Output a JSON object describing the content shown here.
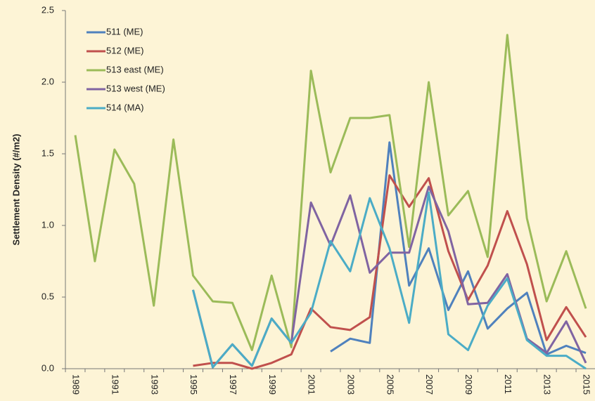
{
  "chart_data": {
    "type": "line",
    "y_label": "Settlement Density (#/m2)",
    "categories": [
      "1989",
      null,
      "1991",
      null,
      "1993",
      null,
      "1995",
      null,
      "1997",
      null,
      "1999",
      null,
      "2001",
      null,
      "2003",
      null,
      "2005",
      null,
      "2007",
      null,
      "2009",
      null,
      "2011",
      null,
      "2013",
      null,
      "2015"
    ],
    "ylim": [
      0,
      2.5
    ],
    "yticks": [
      {
        "value": 0,
        "label": "0.0"
      },
      0.5,
      {
        "value": 1,
        "label": "1.0"
      },
      1.5,
      {
        "value": 2,
        "label": "2.0"
      },
      2.5
    ],
    "legend": "upper left",
    "series": [
      {
        "name": "511 (ME)",
        "color": "#4f81bd",
        "values": [
          null,
          null,
          null,
          null,
          null,
          null,
          null,
          null,
          null,
          null,
          null,
          null,
          null,
          0.12,
          0.21,
          0.18,
          1.58,
          0.58,
          0.84,
          0.41,
          0.68,
          0.28,
          0.42,
          0.53,
          0.1,
          0.16,
          0.11
        ]
      },
      {
        "name": "512 (ME)",
        "color": "#c0504d",
        "values": [
          null,
          null,
          null,
          null,
          null,
          null,
          0.02,
          0.04,
          0.04,
          0.0,
          0.04,
          0.1,
          0.42,
          0.29,
          0.27,
          0.36,
          1.35,
          1.13,
          1.33,
          0.82,
          0.48,
          0.72,
          1.1,
          0.73,
          0.2,
          0.43,
          0.22
        ]
      },
      {
        "name": "513 east (ME)",
        "color": "#9bbb59",
        "values": [
          1.63,
          0.75,
          1.53,
          1.29,
          0.44,
          1.6,
          0.65,
          0.47,
          0.46,
          0.13,
          0.65,
          0.15,
          2.08,
          1.37,
          1.75,
          1.75,
          1.77,
          0.85,
          2.0,
          1.07,
          1.24,
          0.78,
          2.33,
          1.05,
          0.47,
          0.82,
          0.42
        ]
      },
      {
        "name": "513 west (ME)",
        "color": "#8064a2",
        "values": [
          null,
          null,
          null,
          null,
          null,
          null,
          0.55,
          0.01,
          0.17,
          0.02,
          0.35,
          0.18,
          1.16,
          0.86,
          1.21,
          0.67,
          0.81,
          0.81,
          1.27,
          0.96,
          0.45,
          0.46,
          0.66,
          0.21,
          0.11,
          0.33,
          0.04
        ]
      },
      {
        "name": "514 (MA)",
        "color": "#4bacc6",
        "values": [
          null,
          null,
          null,
          null,
          null,
          null,
          0.55,
          0.01,
          0.17,
          0.02,
          0.35,
          0.18,
          0.39,
          0.89,
          0.68,
          1.19,
          0.84,
          0.32,
          1.23,
          0.24,
          0.13,
          0.44,
          0.63,
          0.2,
          0.09,
          0.09,
          0.0
        ]
      }
    ]
  }
}
